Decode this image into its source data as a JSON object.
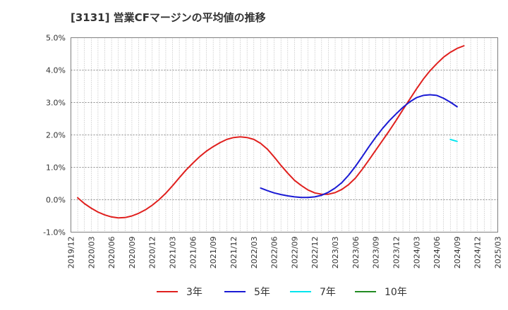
{
  "title": "[3131]  営業CFマージンの平均値の推移",
  "chart_data": {
    "type": "line",
    "title": "[3131]  営業CFマージンの平均値の推移",
    "xlabel": "",
    "ylabel": "",
    "ylim": [
      -1.0,
      5.0
    ],
    "y_ticks": [
      "-1.0%",
      "0.0%",
      "1.0%",
      "2.0%",
      "3.0%",
      "4.0%",
      "5.0%"
    ],
    "x_ticks": [
      "2019/12",
      "2020/03",
      "2020/06",
      "2020/09",
      "2020/12",
      "2021/03",
      "2021/06",
      "2021/09",
      "2021/12",
      "2022/03",
      "2022/06",
      "2022/09",
      "2022/12",
      "2023/03",
      "2023/06",
      "2023/09",
      "2023/12",
      "2024/03",
      "2024/06",
      "2024/09",
      "2024/12",
      "2025/03"
    ],
    "grid": true,
    "legend_position": "bottom",
    "series": [
      {
        "name": "3年",
        "color": "#e0201e",
        "points": [
          [
            "2020/01",
            0.06
          ],
          [
            "2020/02",
            -0.12
          ],
          [
            "2020/03",
            -0.26
          ],
          [
            "2020/04",
            -0.38
          ],
          [
            "2020/05",
            -0.47
          ],
          [
            "2020/06",
            -0.53
          ],
          [
            "2020/07",
            -0.56
          ],
          [
            "2020/08",
            -0.55
          ],
          [
            "2020/09",
            -0.5
          ],
          [
            "2020/10",
            -0.42
          ],
          [
            "2020/11",
            -0.31
          ],
          [
            "2020/12",
            -0.17
          ],
          [
            "2021/01",
            0.0
          ],
          [
            "2021/02",
            0.2
          ],
          [
            "2021/03",
            0.43
          ],
          [
            "2021/04",
            0.68
          ],
          [
            "2021/05",
            0.92
          ],
          [
            "2021/06",
            1.13
          ],
          [
            "2021/07",
            1.33
          ],
          [
            "2021/08",
            1.5
          ],
          [
            "2021/09",
            1.64
          ],
          [
            "2021/10",
            1.76
          ],
          [
            "2021/11",
            1.86
          ],
          [
            "2021/12",
            1.92
          ],
          [
            "2022/01",
            1.94
          ],
          [
            "2022/02",
            1.92
          ],
          [
            "2022/03",
            1.86
          ],
          [
            "2022/04",
            1.74
          ],
          [
            "2022/05",
            1.56
          ],
          [
            "2022/06",
            1.32
          ],
          [
            "2022/07",
            1.06
          ],
          [
            "2022/08",
            0.82
          ],
          [
            "2022/09",
            0.6
          ],
          [
            "2022/10",
            0.44
          ],
          [
            "2022/11",
            0.3
          ],
          [
            "2022/12",
            0.21
          ],
          [
            "2023/01",
            0.17
          ],
          [
            "2023/02",
            0.17
          ],
          [
            "2023/03",
            0.22
          ],
          [
            "2023/04",
            0.32
          ],
          [
            "2023/05",
            0.47
          ],
          [
            "2023/06",
            0.67
          ],
          [
            "2023/07",
            0.94
          ],
          [
            "2023/08",
            1.23
          ],
          [
            "2023/09",
            1.53
          ],
          [
            "2023/10",
            1.83
          ],
          [
            "2023/11",
            2.13
          ],
          [
            "2023/12",
            2.45
          ],
          [
            "2024/01",
            2.78
          ],
          [
            "2024/02",
            3.1
          ],
          [
            "2024/03",
            3.42
          ],
          [
            "2024/04",
            3.72
          ],
          [
            "2024/05",
            3.98
          ],
          [
            "2024/06",
            4.2
          ],
          [
            "2024/07",
            4.4
          ],
          [
            "2024/08",
            4.55
          ],
          [
            "2024/09",
            4.67
          ],
          [
            "2024/10",
            4.75
          ]
        ]
      },
      {
        "name": "5年",
        "color": "#1a1ad4",
        "points": [
          [
            "2022/04",
            0.36
          ],
          [
            "2022/05",
            0.28
          ],
          [
            "2022/06",
            0.21
          ],
          [
            "2022/07",
            0.16
          ],
          [
            "2022/08",
            0.12
          ],
          [
            "2022/09",
            0.09
          ],
          [
            "2022/10",
            0.07
          ],
          [
            "2022/11",
            0.07
          ],
          [
            "2022/12",
            0.09
          ],
          [
            "2023/01",
            0.14
          ],
          [
            "2023/02",
            0.23
          ],
          [
            "2023/03",
            0.36
          ],
          [
            "2023/04",
            0.53
          ],
          [
            "2023/05",
            0.76
          ],
          [
            "2023/06",
            1.03
          ],
          [
            "2023/07",
            1.33
          ],
          [
            "2023/08",
            1.64
          ],
          [
            "2023/09",
            1.93
          ],
          [
            "2023/10",
            2.2
          ],
          [
            "2023/11",
            2.44
          ],
          [
            "2023/12",
            2.65
          ],
          [
            "2024/01",
            2.85
          ],
          [
            "2024/02",
            3.02
          ],
          [
            "2024/03",
            3.15
          ],
          [
            "2024/04",
            3.22
          ],
          [
            "2024/05",
            3.24
          ],
          [
            "2024/06",
            3.22
          ],
          [
            "2024/07",
            3.13
          ],
          [
            "2024/08",
            3.01
          ],
          [
            "2024/09",
            2.87
          ]
        ]
      },
      {
        "name": "7年",
        "color": "#00e5ee",
        "points": [
          [
            "2024/08",
            1.86
          ],
          [
            "2024/09",
            1.8
          ]
        ]
      },
      {
        "name": "10年",
        "color": "#228b22",
        "points": []
      }
    ]
  }
}
